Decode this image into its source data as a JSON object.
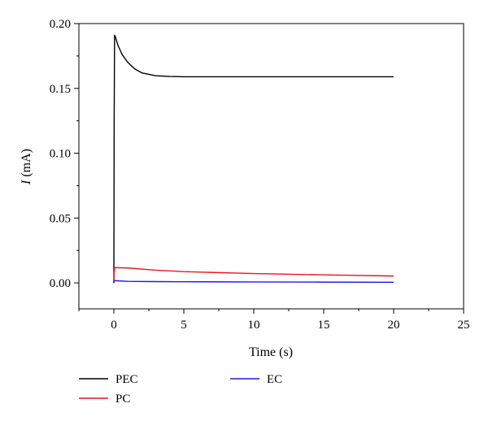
{
  "chart_data": {
    "type": "line",
    "title": "",
    "xlabel": "Time (s)",
    "ylabel_italic": "I",
    "ylabel_rest": " (mA)",
    "xlim": [
      -2.5,
      25
    ],
    "ylim": [
      -0.02,
      0.2
    ],
    "x_ticks": [
      0,
      5,
      10,
      15,
      20,
      25
    ],
    "y_ticks": [
      0.0,
      0.05,
      0.1,
      0.15,
      0.2
    ],
    "x_tick_labels": [
      "0",
      "5",
      "10",
      "15",
      "20",
      "25"
    ],
    "y_tick_labels": [
      "0.00",
      "0.05",
      "0.10",
      "0.15",
      "0.20"
    ],
    "grid": false,
    "legend_position": "bottom",
    "series": [
      {
        "name": "PEC",
        "color": "#000000",
        "x": [
          0,
          0.02,
          0.05,
          0.1,
          0.3,
          0.6,
          1.0,
          1.5,
          2.0,
          3.0,
          4.0,
          5.0,
          7.0,
          10.0,
          15.0,
          20.0
        ],
        "y": [
          0.0,
          0.12,
          0.191,
          0.19,
          0.183,
          0.176,
          0.17,
          0.165,
          0.162,
          0.1598,
          0.1592,
          0.159,
          0.159,
          0.159,
          0.159,
          0.159
        ]
      },
      {
        "name": "PC",
        "color": "#e8171b",
        "x": [
          0,
          0.02,
          0.05,
          0.1,
          1.0,
          3.0,
          5.0,
          10.0,
          15.0,
          20.0
        ],
        "y": [
          0.0,
          0.008,
          0.0115,
          0.0118,
          0.0115,
          0.0098,
          0.0087,
          0.0072,
          0.0062,
          0.0053
        ]
      },
      {
        "name": "EC",
        "color": "#1c1ce6",
        "x": [
          0,
          0.02,
          0.05,
          0.1,
          1.0,
          3.0,
          5.0,
          10.0,
          15.0,
          20.0
        ],
        "y": [
          0.0,
          0.0015,
          0.0018,
          0.0017,
          0.0012,
          0.001,
          0.0009,
          0.0007,
          0.0006,
          0.0005
        ]
      }
    ]
  }
}
